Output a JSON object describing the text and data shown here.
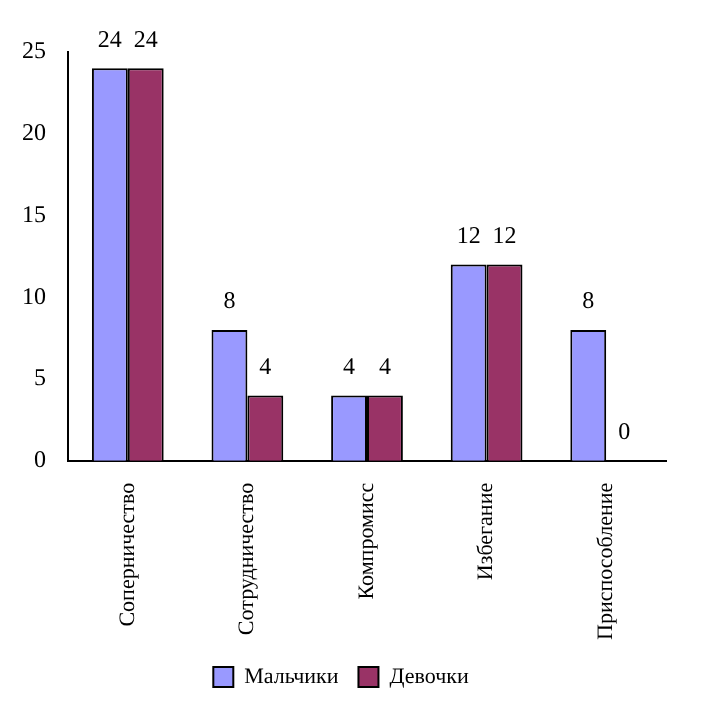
{
  "chart_data": {
    "type": "bar",
    "categories": [
      "Соперничество",
      "Сотрудничество",
      "Компромисс",
      "Избегание",
      "Приспособление"
    ],
    "series": [
      {
        "name": "Мальчики",
        "color": "#9999ff",
        "values": [
          24,
          8,
          4,
          12,
          8
        ]
      },
      {
        "name": "Девочки",
        "color": "#993366",
        "values": [
          24,
          4,
          4,
          12,
          0
        ]
      }
    ],
    "ylim": [
      0,
      25
    ],
    "yticks": [
      0,
      5,
      10,
      15,
      20,
      25
    ],
    "grid": false,
    "legend": "bottom",
    "data_labels": true
  }
}
